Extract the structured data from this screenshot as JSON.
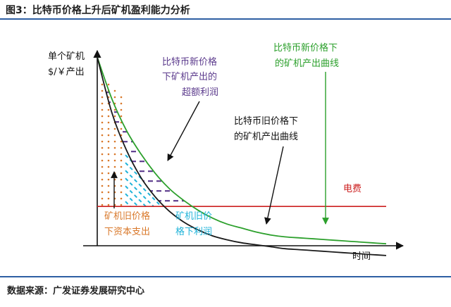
{
  "figure": {
    "title": "图3：比特币价格上升后矿机盈利能力分析",
    "source": "数据来源：广发证券发展研究中心"
  },
  "chart_data": {
    "type": "line",
    "title": "",
    "ylabel_lines": [
      "单个矿机",
      "$/￥产出"
    ],
    "xlabel": "时间",
    "series": [
      {
        "name": "比特币新价格下的矿机产出曲线",
        "label_lines": [
          "比特币新价格下",
          "的矿机产出曲线"
        ],
        "color": "#2ca02c",
        "values": [
          9.6,
          7.5,
          5.9,
          4.7,
          3.7,
          2.9,
          2.3,
          1.8,
          1.4,
          1.1,
          0.9,
          0.7,
          0.55,
          0.45
        ]
      },
      {
        "name": "比特币旧价格下的矿机产出曲线",
        "label_lines": [
          "比特币旧价格下",
          "的矿机产出曲线"
        ],
        "color": "#1a1a1a",
        "values": [
          9.6,
          6.8,
          4.9,
          3.5,
          2.5,
          1.75,
          1.2,
          0.8,
          0.5,
          0.3,
          0.15,
          0.05,
          -0.05,
          -0.15
        ]
      }
    ],
    "x": [
      0,
      0.05,
      0.1,
      0.15,
      0.2,
      0.25,
      0.3,
      0.35,
      0.4,
      0.45,
      0.5,
      0.55,
      0.6,
      0.65
    ],
    "reference_line": {
      "label": "电费",
      "value": 2.0,
      "color": "#cc1f1f"
    },
    "regions": [
      {
        "label_lines": [
          "比特币新价格",
          "下矿机产出的",
          "超额利润"
        ],
        "color": "#5b3a8c",
        "style": "dash"
      },
      {
        "label_lines": [
          "矿机旧价格",
          "下资本支出"
        ],
        "color": "#d9782a",
        "style": "dots"
      },
      {
        "label_lines": [
          "矿机旧价",
          "格下利润"
        ],
        "color": "#1fb3d9",
        "style": "dash-diagonal"
      }
    ],
    "xlim": [
      0,
      1
    ],
    "ylim": [
      0,
      10
    ],
    "grid": false
  }
}
